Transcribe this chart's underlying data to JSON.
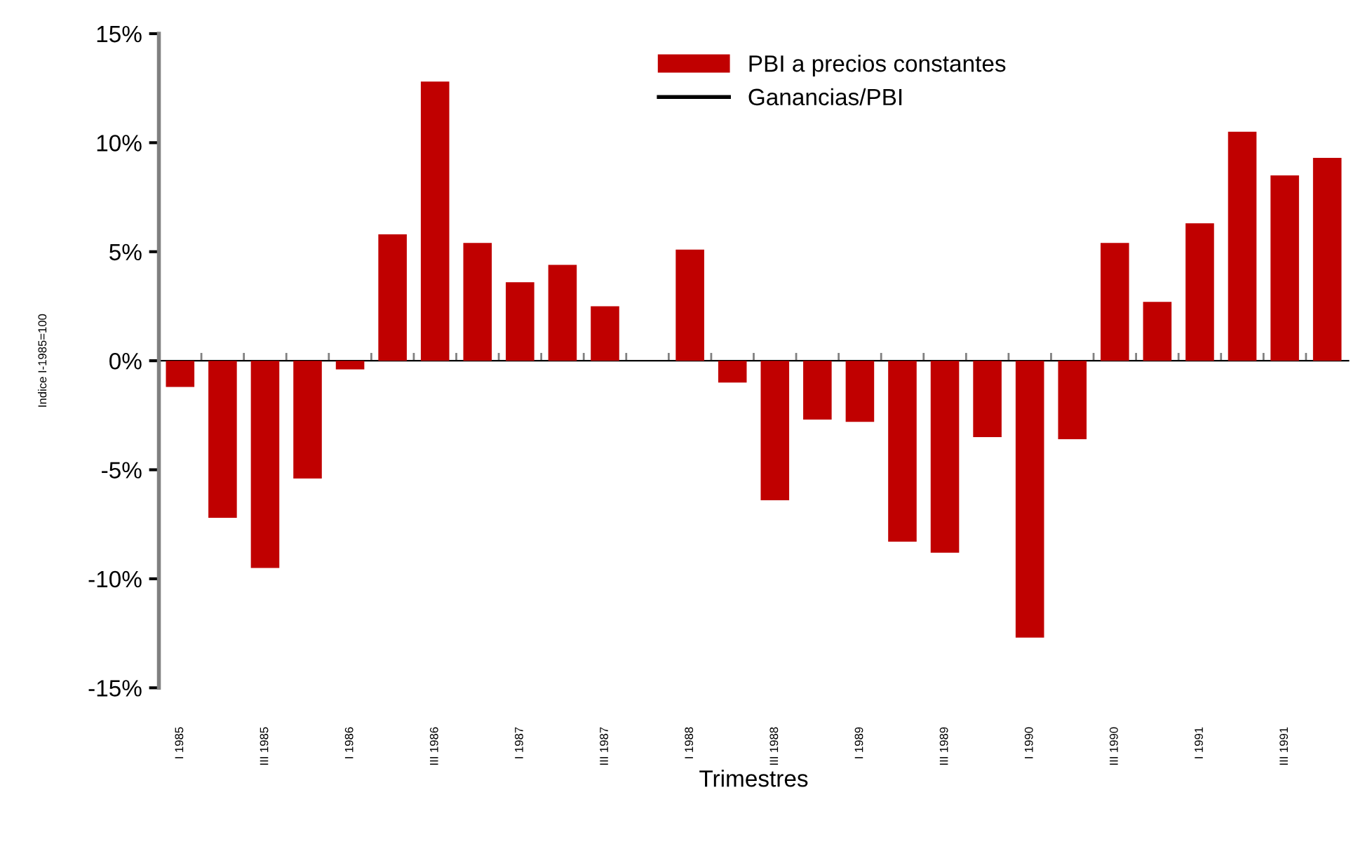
{
  "chart_data": {
    "type": "bar",
    "xlabel": "Trimestres",
    "ylabel": "Indice I-1985=100",
    "categories": [
      "I 1985",
      null,
      "III 1985",
      null,
      "I 1986",
      null,
      "III 1986",
      null,
      "I 1987",
      null,
      "III 1987",
      null,
      "I 1988",
      null,
      "III 1988",
      null,
      "I 1989",
      null,
      "III 1989",
      null,
      "I 1990",
      null,
      "III 1990",
      null,
      "I 1991",
      null,
      "III 1991",
      null
    ],
    "series": [
      {
        "name": "PBI a precios constantes",
        "color": "#c00000",
        "values": [
          -1.2,
          -7.2,
          -9.5,
          -5.4,
          -0.4,
          5.8,
          12.8,
          5.4,
          3.6,
          4.4,
          2.5,
          0,
          5.1,
          -1.0,
          -6.4,
          -2.7,
          -2.8,
          -8.3,
          -8.8,
          -3.5,
          -12.7,
          -3.6,
          5.4,
          2.7,
          6.3,
          10.5,
          8.5,
          9.3
        ]
      },
      {
        "name": "Ganancias/PBI",
        "color": "#000000",
        "type": "line",
        "values": [
          null,
          null,
          null,
          null,
          null,
          null,
          null,
          null,
          null,
          null,
          null,
          null,
          null,
          null,
          null,
          null,
          null,
          null,
          null,
          null,
          null,
          null,
          null,
          null,
          null,
          null,
          null,
          null
        ]
      }
    ],
    "ylim": [
      -15,
      15
    ],
    "yticks": [
      {
        "value": -15,
        "label": "-15%"
      },
      {
        "value": -10,
        "label": "-10%"
      },
      {
        "value": -5,
        "label": "-5%"
      },
      {
        "value": 0,
        "label": "0%"
      },
      {
        "value": 5,
        "label": "5%"
      },
      {
        "value": 10,
        "label": "10%"
      },
      {
        "value": 15,
        "label": "15%"
      }
    ],
    "legend": "top right"
  }
}
